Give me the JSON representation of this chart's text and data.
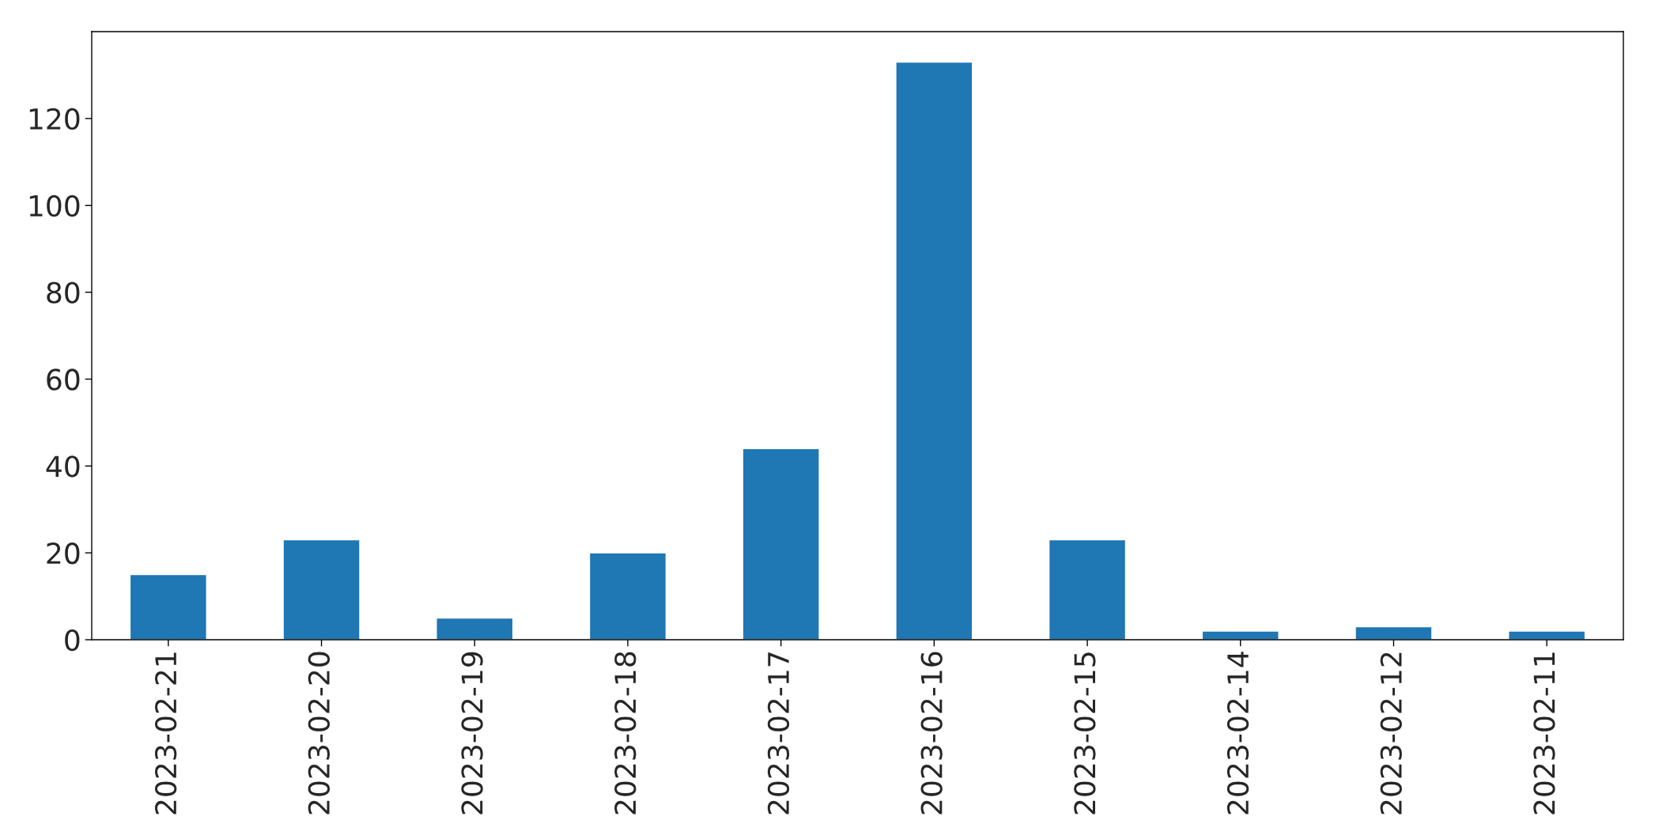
{
  "chart_data": {
    "type": "bar",
    "categories": [
      "2023-02-21",
      "2023-02-20",
      "2023-02-19",
      "2023-02-18",
      "2023-02-17",
      "2023-02-16",
      "2023-02-15",
      "2023-02-14",
      "2023-02-12",
      "2023-02-11"
    ],
    "values": [
      15,
      23,
      5,
      20,
      44,
      133,
      23,
      2,
      3,
      2
    ],
    "color": "#1f77b4",
    "ylim": [
      0,
      140
    ],
    "yticks": [
      0,
      20,
      40,
      60,
      80,
      100,
      120
    ],
    "grid": false,
    "legend": false
  }
}
